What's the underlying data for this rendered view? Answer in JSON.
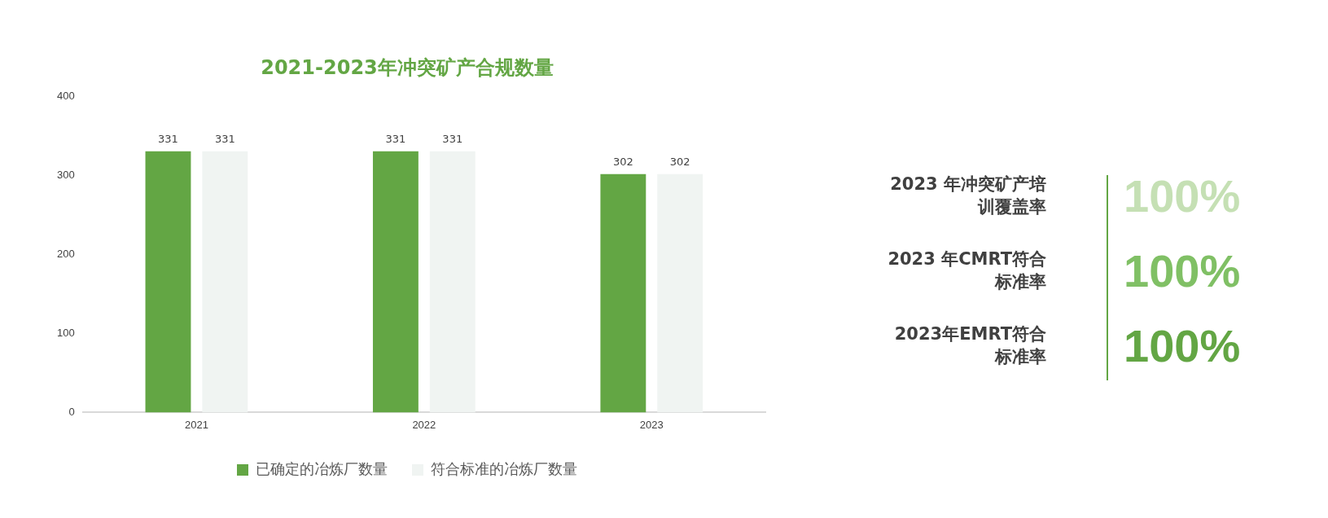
{
  "chart_data": [
    {
      "type": "bar",
      "title": "2021-2023年冲突矿产合规数量",
      "categories": [
        "2021",
        "2022",
        "2023"
      ],
      "series": [
        {
          "name": "已确定的冶炼厂数量",
          "color": "#63a644",
          "values": [
            331,
            331,
            302
          ]
        },
        {
          "name": "符合标准的冶炼厂数量",
          "color": "#f0f4f2",
          "values": [
            331,
            331,
            302
          ]
        }
      ],
      "ylim": [
        0,
        400
      ],
      "yticks": [
        0,
        100,
        200,
        300,
        400
      ],
      "grid": false,
      "legend": "bottom",
      "data_labels": true
    },
    {
      "type": "other",
      "annotations": [
        "2023 年冲突矿产培训覆盖率",
        "100%",
        "2023 年CMRT符合标准率",
        "100%",
        "2023年EMRT符合标准率",
        "100%"
      ],
      "colors": [
        "#c5e0b4",
        "#80c065",
        "#63a644"
      ]
    }
  ]
}
